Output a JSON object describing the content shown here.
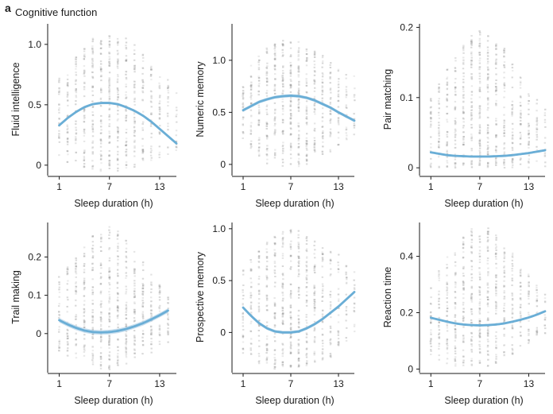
{
  "figure": {
    "panel_letter": "a",
    "title": "Cognitive function",
    "colors": {
      "fit": "#6aaed6",
      "band": "#a9cbe4",
      "dots": "#9a9a9a",
      "axis": "#1a1a1a"
    }
  },
  "chart_data": [
    {
      "type": "scatter",
      "title": "Fluid intelligence",
      "xlabel": "Sleep duration (h)",
      "ylabel": "Fluid intelligence",
      "xlim": [
        0,
        15
      ],
      "ylim": [
        -0.08,
        1.17
      ],
      "xticks": [
        1,
        7,
        13
      ],
      "xtick_labels": [
        "1",
        "7",
        "13"
      ],
      "yticks": [
        0,
        0.5,
        1.0
      ],
      "ytick_labels": [
        "0",
        "0.5",
        "1.0"
      ],
      "fit": {
        "x": [
          1,
          2,
          3,
          4,
          5,
          6,
          7,
          8,
          9,
          10,
          11,
          12,
          13,
          14,
          15
        ],
        "y": [
          0.33,
          0.39,
          0.44,
          0.48,
          0.505,
          0.515,
          0.515,
          0.505,
          0.48,
          0.45,
          0.41,
          0.36,
          0.3,
          0.24,
          0.18
        ]
      },
      "band_halfwidth": 0.01,
      "scatter_range": {
        "x": [
          1,
          15
        ],
        "y_min": [
          0.08,
          0.02,
          0.0,
          -0.02,
          -0.04,
          -0.05,
          -0.05,
          -0.05,
          -0.04,
          -0.02,
          0.0,
          0.02,
          0.05,
          0.08,
          0.1
        ],
        "y_max": [
          0.72,
          0.82,
          0.9,
          0.98,
          1.05,
          1.1,
          1.1,
          1.08,
          1.05,
          1.0,
          0.92,
          0.84,
          0.78,
          0.72,
          0.66
        ]
      }
    },
    {
      "type": "scatter",
      "title": "Numeric memory",
      "xlabel": "Sleep duration (h)",
      "ylabel": "Numeric memory",
      "xlim": [
        0,
        15
      ],
      "ylim": [
        -0.1,
        1.35
      ],
      "xticks": [
        1,
        7,
        13
      ],
      "xtick_labels": [
        "1",
        "7",
        "13"
      ],
      "yticks": [
        0,
        0.5,
        1.0
      ],
      "ytick_labels": [
        "0",
        "0.5",
        "1.0"
      ],
      "fit": {
        "x": [
          1,
          2,
          3,
          4,
          5,
          6,
          7,
          8,
          9,
          10,
          11,
          12,
          13,
          14,
          15
        ],
        "y": [
          0.52,
          0.56,
          0.6,
          0.625,
          0.645,
          0.655,
          0.66,
          0.655,
          0.64,
          0.615,
          0.58,
          0.545,
          0.5,
          0.46,
          0.42
        ]
      },
      "band_halfwidth": 0.015,
      "scatter_range": {
        "x": [
          1,
          15
        ],
        "y_min": [
          0.25,
          0.15,
          0.05,
          0.0,
          -0.02,
          -0.02,
          -0.02,
          -0.02,
          0.0,
          0.02,
          0.05,
          0.1,
          0.15,
          0.2,
          0.25
        ],
        "y_max": [
          0.8,
          0.95,
          1.05,
          1.12,
          1.18,
          1.2,
          1.2,
          1.18,
          1.15,
          1.1,
          1.05,
          1.0,
          0.95,
          0.9,
          0.85
        ]
      }
    },
    {
      "type": "scatter",
      "title": "Pair matching",
      "xlabel": "Sleep duration (h)",
      "ylabel": "Pair matching",
      "xlim": [
        0,
        15
      ],
      "ylim": [
        -0.01,
        0.205
      ],
      "xticks": [
        1,
        7,
        13
      ],
      "xtick_labels": [
        "1",
        "7",
        "13"
      ],
      "yticks": [
        0,
        0.1,
        0.2
      ],
      "ytick_labels": [
        "0",
        "0.1",
        "0.2"
      ],
      "fit": {
        "x": [
          1,
          2,
          3,
          4,
          5,
          6,
          7,
          8,
          9,
          10,
          11,
          12,
          13,
          14,
          15
        ],
        "y": [
          0.022,
          0.02,
          0.018,
          0.017,
          0.0165,
          0.016,
          0.016,
          0.016,
          0.0165,
          0.017,
          0.018,
          0.0195,
          0.021,
          0.023,
          0.025
        ]
      },
      "band_halfwidth": 0.0015,
      "scatter_range": {
        "x": [
          1,
          15
        ],
        "y_min": [
          0.0,
          0.0,
          0.0,
          0.0,
          0.0,
          0.0,
          0.0,
          0.0,
          0.0,
          0.0,
          0.0,
          0.0,
          0.0,
          0.0,
          0.0
        ],
        "y_max": [
          0.1,
          0.12,
          0.14,
          0.16,
          0.18,
          0.19,
          0.195,
          0.19,
          0.18,
          0.17,
          0.15,
          0.13,
          0.11,
          0.1,
          0.09
        ]
      }
    },
    {
      "type": "scatter",
      "title": "Trail making",
      "xlabel": "Sleep duration (h)",
      "ylabel": "Trail making",
      "xlim": [
        0,
        15
      ],
      "ylim": [
        -0.1,
        0.29
      ],
      "xticks": [
        1,
        7,
        13
      ],
      "xtick_labels": [
        "1",
        "7",
        "13"
      ],
      "yticks": [
        0,
        0.1,
        0.2
      ],
      "ytick_labels": [
        "0",
        "0.1",
        "0.2"
      ],
      "fit": {
        "x": [
          1,
          2,
          3,
          4,
          5,
          6,
          7,
          8,
          9,
          10,
          11,
          12,
          13,
          14
        ],
        "y": [
          0.035,
          0.024,
          0.015,
          0.008,
          0.004,
          0.003,
          0.004,
          0.007,
          0.012,
          0.019,
          0.027,
          0.037,
          0.048,
          0.06
        ]
      },
      "band_halfwidth": 0.006,
      "scatter_range": {
        "x": [
          1,
          14
        ],
        "y_min": [
          -0.05,
          -0.06,
          -0.07,
          -0.08,
          -0.09,
          -0.095,
          -0.095,
          -0.09,
          -0.08,
          -0.07,
          -0.06,
          -0.05,
          -0.04,
          -0.03
        ],
        "y_max": [
          0.15,
          0.18,
          0.2,
          0.23,
          0.26,
          0.27,
          0.28,
          0.27,
          0.25,
          0.22,
          0.19,
          0.16,
          0.13,
          0.11
        ]
      }
    },
    {
      "type": "scatter",
      "title": "Prospective memory",
      "xlabel": "Sleep duration (h)",
      "ylabel": "Prospective memory",
      "xlim": [
        0,
        15
      ],
      "ylim": [
        -0.38,
        1.06
      ],
      "xticks": [
        1,
        7,
        13
      ],
      "xtick_labels": [
        "1",
        "7",
        "13"
      ],
      "yticks": [
        0,
        0.5,
        1.0
      ],
      "ytick_labels": [
        "0",
        "0.5",
        "1.0"
      ],
      "fit": {
        "x": [
          1,
          2,
          3,
          4,
          5,
          6,
          7,
          8,
          9,
          10,
          11,
          12,
          13,
          14,
          15
        ],
        "y": [
          0.24,
          0.16,
          0.09,
          0.04,
          0.01,
          0.0,
          0.0,
          0.01,
          0.04,
          0.08,
          0.13,
          0.19,
          0.25,
          0.32,
          0.39
        ]
      },
      "band_halfwidth": 0.015,
      "scatter_range": {
        "x": [
          1,
          15
        ],
        "y_min": [
          -0.2,
          -0.25,
          -0.3,
          -0.33,
          -0.35,
          -0.35,
          -0.35,
          -0.35,
          -0.33,
          -0.3,
          -0.27,
          -0.24,
          -0.2,
          -0.15,
          -0.1
        ],
        "y_max": [
          0.6,
          0.7,
          0.8,
          0.88,
          0.95,
          0.98,
          1.0,
          0.98,
          0.95,
          0.9,
          0.85,
          0.8,
          0.75,
          0.7,
          0.65
        ]
      }
    },
    {
      "type": "scatter",
      "title": "Reaction time",
      "xlabel": "Sleep duration (h)",
      "ylabel": "Reaction time",
      "xlim": [
        0,
        15
      ],
      "ylim": [
        -0.01,
        0.52
      ],
      "xticks": [
        1,
        7,
        13
      ],
      "xtick_labels": [
        "1",
        "7",
        "13"
      ],
      "yticks": [
        0,
        0.2,
        0.4
      ],
      "ytick_labels": [
        "0",
        "0.2",
        "0.4"
      ],
      "fit": {
        "x": [
          1,
          2,
          3,
          4,
          5,
          6,
          7,
          8,
          9,
          10,
          11,
          12,
          13,
          14,
          15
        ],
        "y": [
          0.182,
          0.175,
          0.168,
          0.162,
          0.158,
          0.156,
          0.155,
          0.156,
          0.158,
          0.162,
          0.168,
          0.175,
          0.183,
          0.193,
          0.205
        ]
      },
      "band_halfwidth": 0.004,
      "scatter_range": {
        "x": [
          1,
          15
        ],
        "y_min": [
          0.05,
          0.03,
          0.02,
          0.01,
          0.01,
          0.01,
          0.01,
          0.01,
          0.02,
          0.03,
          0.05,
          0.07,
          0.09,
          0.11,
          0.12
        ],
        "y_max": [
          0.3,
          0.35,
          0.4,
          0.45,
          0.48,
          0.5,
          0.5,
          0.5,
          0.48,
          0.45,
          0.42,
          0.38,
          0.34,
          0.3,
          0.28
        ]
      }
    }
  ]
}
